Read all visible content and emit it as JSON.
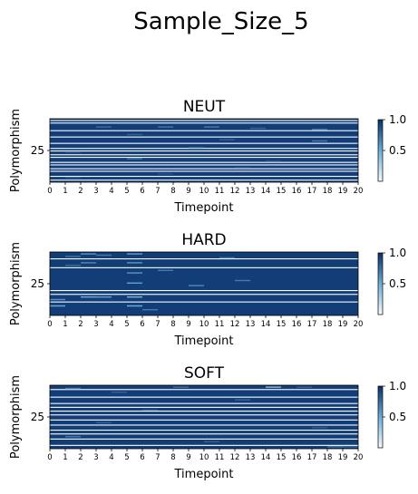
{
  "figure": {
    "title": "Sample_Size_5"
  },
  "colors": {
    "cmap_low": "#f7fbff",
    "cmap_mid": "#6baed6",
    "cmap_high": "#08306b",
    "separator": "#ffffff"
  },
  "chart_data": [
    {
      "type": "heatmap",
      "title": "NEUT",
      "xlabel": "Timepoint",
      "ylabel": "Polymorphism",
      "x_ticks": [
        "0",
        "1",
        "2",
        "3",
        "4",
        "5",
        "6",
        "7",
        "8",
        "9",
        "10",
        "11",
        "12",
        "13",
        "14",
        "15",
        "16",
        "17",
        "18",
        "19",
        "20"
      ],
      "y_ticks": [
        {
          "value": 25,
          "label": "25"
        }
      ],
      "n_rows": 50,
      "n_cols": 20,
      "colorbar": {
        "min": 0.0,
        "max": 1.0,
        "ticks": [
          "0.5",
          "1.0"
        ]
      },
      "background_value": 0.95,
      "low_rows": [
        1,
        3,
        9,
        14,
        19,
        23,
        25,
        28,
        30,
        34,
        36,
        39,
        41,
        45,
        48
      ],
      "low_row_value": 0.0,
      "highlights": [
        {
          "row": 6,
          "col": 3,
          "value": 0.75
        },
        {
          "row": 6,
          "col": 7,
          "value": 0.72
        },
        {
          "row": 6,
          "col": 10,
          "value": 0.7
        },
        {
          "row": 7,
          "col": 13,
          "value": 0.78
        },
        {
          "row": 8,
          "col": 17,
          "value": 0.65
        },
        {
          "row": 12,
          "col": 5,
          "value": 0.8
        },
        {
          "row": 16,
          "col": 11,
          "value": 0.8
        },
        {
          "row": 17,
          "col": 17,
          "value": 0.7
        },
        {
          "row": 22,
          "col": 9,
          "value": 0.82
        },
        {
          "row": 26,
          "col": 1,
          "value": 0.84
        },
        {
          "row": 31,
          "col": 5,
          "value": 0.7
        },
        {
          "row": 33,
          "col": 14,
          "value": 0.83
        },
        {
          "row": 38,
          "col": 12,
          "value": 0.84
        },
        {
          "row": 43,
          "col": 7,
          "value": 0.85
        },
        {
          "row": 46,
          "col": 1,
          "value": 0.85
        }
      ]
    },
    {
      "type": "heatmap",
      "title": "HARD",
      "xlabel": "Timepoint",
      "ylabel": "Polymorphism",
      "x_ticks": [
        "0",
        "1",
        "2",
        "3",
        "4",
        "5",
        "6",
        "7",
        "8",
        "9",
        "10",
        "11",
        "12",
        "13",
        "14",
        "15",
        "16",
        "17",
        "18",
        "19",
        "20"
      ],
      "y_ticks": [
        {
          "value": 25,
          "label": "25"
        }
      ],
      "n_rows": 50,
      "n_cols": 20,
      "colorbar": {
        "min": 0.0,
        "max": 1.0,
        "ticks": [
          "0.5",
          "1.0"
        ]
      },
      "background_value": 0.95,
      "low_rows": [
        5,
        12,
        30,
        33,
        39
      ],
      "low_row_value": 0.0,
      "highlights": [
        {
          "row": 1,
          "col": 2,
          "value": 0.6
        },
        {
          "row": 1,
          "col": 5,
          "value": 0.55
        },
        {
          "row": 2,
          "col": 3,
          "value": 0.7
        },
        {
          "row": 3,
          "col": 1,
          "value": 0.72
        },
        {
          "row": 4,
          "col": 11,
          "value": 0.75
        },
        {
          "row": 8,
          "col": 2,
          "value": 0.65
        },
        {
          "row": 8,
          "col": 5,
          "value": 0.6
        },
        {
          "row": 10,
          "col": 1,
          "value": 0.75
        },
        {
          "row": 14,
          "col": 7,
          "value": 0.7
        },
        {
          "row": 16,
          "col": 5,
          "value": 0.6
        },
        {
          "row": 22,
          "col": 12,
          "value": 0.7
        },
        {
          "row": 24,
          "col": 5,
          "value": 0.55
        },
        {
          "row": 26,
          "col": 9,
          "value": 0.65
        },
        {
          "row": 35,
          "col": 2,
          "value": 0.5
        },
        {
          "row": 35,
          "col": 3,
          "value": 0.55
        },
        {
          "row": 35,
          "col": 5,
          "value": 0.45
        },
        {
          "row": 37,
          "col": 0,
          "value": 0.6
        },
        {
          "row": 42,
          "col": 0,
          "value": 0.5
        },
        {
          "row": 42,
          "col": 5,
          "value": 0.5
        },
        {
          "row": 45,
          "col": 6,
          "value": 0.7
        }
      ]
    },
    {
      "type": "heatmap",
      "title": "SOFT",
      "xlabel": "Timepoint",
      "ylabel": "Polymorphism",
      "x_ticks": [
        "0",
        "1",
        "2",
        "3",
        "4",
        "5",
        "6",
        "7",
        "8",
        "9",
        "10",
        "11",
        "12",
        "13",
        "14",
        "15",
        "16",
        "17",
        "18",
        "19",
        "20"
      ],
      "y_ticks": [
        {
          "value": 25,
          "label": "25"
        }
      ],
      "n_rows": 50,
      "n_cols": 20,
      "colorbar": {
        "min": 0.0,
        "max": 1.0,
        "ticks": [
          "0.5",
          "1.0"
        ]
      },
      "background_value": 0.95,
      "low_rows": [
        3,
        9,
        14,
        17,
        20,
        23,
        27,
        31,
        35,
        38,
        42,
        47
      ],
      "low_row_value": 0.0,
      "highlights": [
        {
          "row": 1,
          "col": 8,
          "value": 0.75
        },
        {
          "row": 1,
          "col": 14,
          "value": 0.4
        },
        {
          "row": 1,
          "col": 16,
          "value": 0.8
        },
        {
          "row": 2,
          "col": 1,
          "value": 0.7
        },
        {
          "row": 5,
          "col": 4,
          "value": 0.8
        },
        {
          "row": 11,
          "col": 12,
          "value": 0.78
        },
        {
          "row": 19,
          "col": 6,
          "value": 0.82
        },
        {
          "row": 29,
          "col": 3,
          "value": 0.8
        },
        {
          "row": 33,
          "col": 17,
          "value": 0.8
        },
        {
          "row": 40,
          "col": 1,
          "value": 0.72
        },
        {
          "row": 44,
          "col": 10,
          "value": 0.8
        },
        {
          "row": 48,
          "col": 18,
          "value": 0.7
        },
        {
          "row": 48,
          "col": 19,
          "value": 0.75
        }
      ]
    }
  ]
}
